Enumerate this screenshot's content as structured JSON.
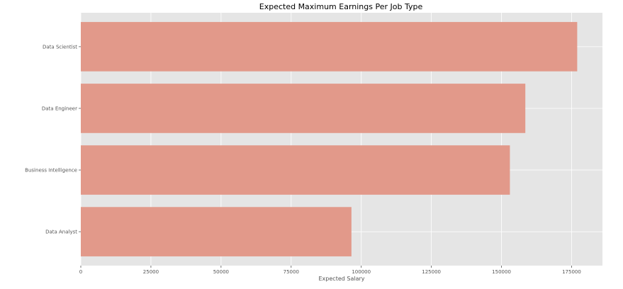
{
  "chart_data": {
    "type": "bar",
    "orientation": "horizontal",
    "title": "Expected Maximum Earnings Per Job Type",
    "xlabel": "Expected Salary",
    "ylabel": "",
    "categories": [
      "Data Scientist",
      "Data Engineer",
      "Business Intelligence",
      "Data Analyst"
    ],
    "values": [
      177000,
      158500,
      153000,
      96500
    ],
    "xlim": [
      0,
      186000
    ],
    "xticks": [
      0,
      25000,
      50000,
      75000,
      100000,
      125000,
      150000,
      175000
    ],
    "xtick_labels": [
      "0",
      "25000",
      "50000",
      "75000",
      "100000",
      "125000",
      "150000",
      "175000"
    ],
    "grid": true,
    "colors": {
      "bar": "#e2998a",
      "plot_background": "#e5e5e5",
      "grid": "#ffffff"
    }
  }
}
